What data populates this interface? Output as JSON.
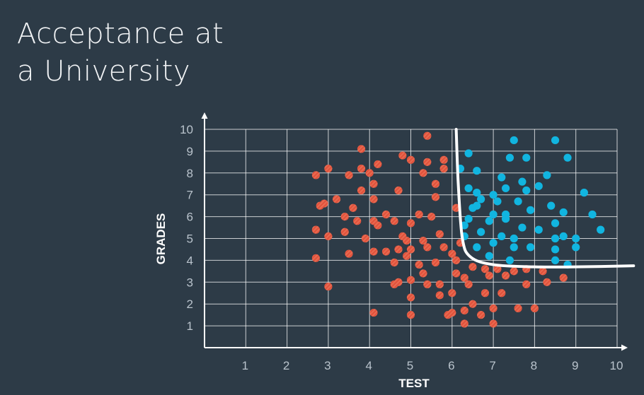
{
  "title_lines": [
    "Acceptance at",
    "a University"
  ],
  "chart_data": {
    "type": "scatter",
    "title": "Acceptance at a University",
    "xlabel": "TEST",
    "ylabel": "GRADES",
    "xlim": [
      0,
      10
    ],
    "ylim": [
      0,
      10
    ],
    "xticks": [
      1,
      2,
      3,
      4,
      5,
      6,
      7,
      8,
      9,
      10
    ],
    "yticks": [
      1,
      2,
      3,
      4,
      5,
      6,
      7,
      8,
      9,
      10
    ],
    "grid": true,
    "colors": {
      "background": "#2d3b47",
      "rejected": "#e2553f",
      "accepted": "#11b5e0",
      "boundary": "#ffffff",
      "grid": "#ffffff",
      "tick": "#b9c3cc"
    },
    "series": [
      {
        "color": "#e2553f",
        "points": [
          [
            5.4,
            9.7
          ],
          [
            3.8,
            9.1
          ],
          [
            4.8,
            8.8
          ],
          [
            5.0,
            8.6
          ],
          [
            5.4,
            8.5
          ],
          [
            5.8,
            8.6
          ],
          [
            4.2,
            8.4
          ],
          [
            2.7,
            7.9
          ],
          [
            3.0,
            8.2
          ],
          [
            3.5,
            7.9
          ],
          [
            3.8,
            8.2
          ],
          [
            4.0,
            8.0
          ],
          [
            5.3,
            8.0
          ],
          [
            5.8,
            8.2
          ],
          [
            4.1,
            7.5
          ],
          [
            5.6,
            7.5
          ],
          [
            3.8,
            7.2
          ],
          [
            4.7,
            7.2
          ],
          [
            5.6,
            6.9
          ],
          [
            4.1,
            6.8
          ],
          [
            3.2,
            6.8
          ],
          [
            2.8,
            6.5
          ],
          [
            2.9,
            6.6
          ],
          [
            3.6,
            6.4
          ],
          [
            4.4,
            6.1
          ],
          [
            5.2,
            6.1
          ],
          [
            5.5,
            6.0
          ],
          [
            6.1,
            6.4
          ],
          [
            3.4,
            6.0
          ],
          [
            3.7,
            5.8
          ],
          [
            4.1,
            5.8
          ],
          [
            4.6,
            5.8
          ],
          [
            5.0,
            5.7
          ],
          [
            2.7,
            5.4
          ],
          [
            3.4,
            5.3
          ],
          [
            4.2,
            5.6
          ],
          [
            3.0,
            5.1
          ],
          [
            3.9,
            5.0
          ],
          [
            4.8,
            5.1
          ],
          [
            5.7,
            5.2
          ],
          [
            4.9,
            4.9
          ],
          [
            5.3,
            4.9
          ],
          [
            6.2,
            4.8
          ],
          [
            4.1,
            4.4
          ],
          [
            4.4,
            4.4
          ],
          [
            4.7,
            4.5
          ],
          [
            5.0,
            4.5
          ],
          [
            5.4,
            4.6
          ],
          [
            5.8,
            4.6
          ],
          [
            6.0,
            4.3
          ],
          [
            3.5,
            4.3
          ],
          [
            2.7,
            4.1
          ],
          [
            4.9,
            4.2
          ],
          [
            4.6,
            3.9
          ],
          [
            5.2,
            3.8
          ],
          [
            5.6,
            3.9
          ],
          [
            6.1,
            4.0
          ],
          [
            6.5,
            3.7
          ],
          [
            6.8,
            3.6
          ],
          [
            7.1,
            3.6
          ],
          [
            7.5,
            3.5
          ],
          [
            7.8,
            3.6
          ],
          [
            8.2,
            3.5
          ],
          [
            6.1,
            3.4
          ],
          [
            5.0,
            3.1
          ],
          [
            5.3,
            3.4
          ],
          [
            6.3,
            3.2
          ],
          [
            6.9,
            3.3
          ],
          [
            7.3,
            3.3
          ],
          [
            8.7,
            3.2
          ],
          [
            8.3,
            3.0
          ],
          [
            7.8,
            2.9
          ],
          [
            3.0,
            2.8
          ],
          [
            4.6,
            2.9
          ],
          [
            4.7,
            3.0
          ],
          [
            5.4,
            2.9
          ],
          [
            5.7,
            2.9
          ],
          [
            6.4,
            2.9
          ],
          [
            6.0,
            2.5
          ],
          [
            6.8,
            2.5
          ],
          [
            7.2,
            2.5
          ],
          [
            5.0,
            2.3
          ],
          [
            5.7,
            2.4
          ],
          [
            6.5,
            2.0
          ],
          [
            7.6,
            1.8
          ],
          [
            8.0,
            1.8
          ],
          [
            7.0,
            1.8
          ],
          [
            6.3,
            1.7
          ],
          [
            6.0,
            1.6
          ],
          [
            5.9,
            1.5
          ],
          [
            6.7,
            1.5
          ],
          [
            4.1,
            1.6
          ],
          [
            5.0,
            1.5
          ],
          [
            6.3,
            1.1
          ],
          [
            7.0,
            1.1
          ]
        ]
      },
      {
        "color": "#11b5e0",
        "points": [
          [
            7.5,
            9.5
          ],
          [
            8.5,
            9.5
          ],
          [
            6.4,
            8.9
          ],
          [
            7.4,
            8.7
          ],
          [
            7.8,
            8.7
          ],
          [
            8.8,
            8.7
          ],
          [
            6.2,
            8.2
          ],
          [
            6.6,
            8.1
          ],
          [
            7.2,
            7.8
          ],
          [
            8.3,
            7.9
          ],
          [
            6.4,
            7.3
          ],
          [
            6.6,
            7.1
          ],
          [
            7.0,
            7.0
          ],
          [
            7.3,
            7.3
          ],
          [
            7.7,
            7.6
          ],
          [
            8.1,
            7.4
          ],
          [
            7.8,
            7.2
          ],
          [
            9.2,
            7.1
          ],
          [
            6.7,
            6.8
          ],
          [
            7.1,
            6.7
          ],
          [
            7.6,
            6.7
          ],
          [
            6.5,
            6.4
          ],
          [
            6.6,
            6.5
          ],
          [
            7.0,
            6.1
          ],
          [
            7.3,
            6.1
          ],
          [
            7.9,
            6.3
          ],
          [
            8.4,
            6.5
          ],
          [
            8.7,
            6.2
          ],
          [
            9.4,
            6.1
          ],
          [
            6.4,
            5.9
          ],
          [
            6.9,
            5.8
          ],
          [
            7.3,
            5.9
          ],
          [
            8.5,
            5.7
          ],
          [
            6.3,
            5.6
          ],
          [
            6.7,
            5.3
          ],
          [
            7.2,
            5.1
          ],
          [
            7.5,
            5.0
          ],
          [
            7.7,
            5.5
          ],
          [
            8.1,
            5.4
          ],
          [
            8.7,
            5.1
          ],
          [
            9.0,
            5.0
          ],
          [
            9.6,
            5.4
          ],
          [
            6.3,
            5.1
          ],
          [
            8.5,
            5.0
          ],
          [
            6.6,
            4.6
          ],
          [
            7.0,
            4.8
          ],
          [
            7.5,
            4.6
          ],
          [
            7.9,
            4.6
          ],
          [
            8.5,
            4.5
          ],
          [
            9.0,
            4.6
          ],
          [
            6.9,
            4.2
          ],
          [
            7.4,
            4.0
          ],
          [
            8.5,
            4.0
          ],
          [
            8.8,
            3.8
          ]
        ]
      }
    ],
    "boundary": [
      [
        6.1,
        10.0
      ],
      [
        6.15,
        7.5
      ],
      [
        6.25,
        5.0
      ],
      [
        6.45,
        4.15
      ],
      [
        7.0,
        3.8
      ],
      [
        8.0,
        3.7
      ],
      [
        9.0,
        3.7
      ],
      [
        10.4,
        3.75
      ]
    ]
  }
}
